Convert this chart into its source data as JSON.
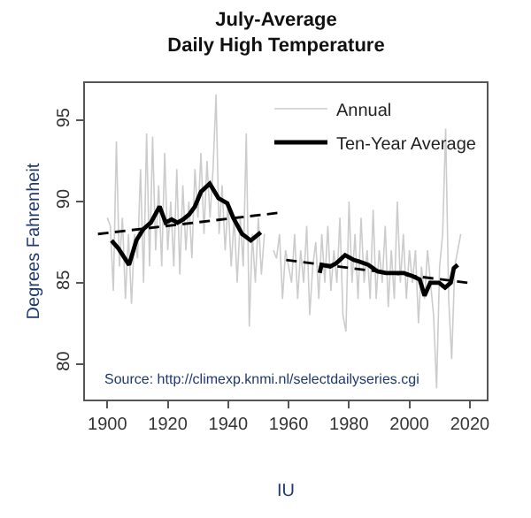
{
  "chart_data": {
    "type": "line",
    "title": "July-Average\nDaily High Temperature",
    "xlabel": "IU",
    "ylabel": "Degrees Fahrenheit",
    "xlim": [
      1892.6,
      2025.6
    ],
    "ylim": [
      77.8,
      97.3
    ],
    "xticks": [
      1900,
      1920,
      1940,
      1960,
      1980,
      2000,
      2020
    ],
    "yticks": [
      80,
      85,
      90,
      95
    ],
    "legend": "top right",
    "marker": "none",
    "annotations": [
      "Source: http://climexp.knmi.nl/selectdailyseries.cgi"
    ],
    "series": [
      {
        "name": "Annual",
        "color": "#cccccc",
        "x": [
          1900,
          1901,
          1902,
          1903,
          1904,
          1905,
          1906,
          1907,
          1908,
          1909,
          1910,
          1911,
          1912,
          1913,
          1914,
          1915,
          1916,
          1917,
          1918,
          1919,
          1920,
          1921,
          1922,
          1923,
          1924,
          1925,
          1926,
          1927,
          1928,
          1929,
          1930,
          1931,
          1932,
          1933,
          1934,
          1935,
          1936,
          1937,
          1938,
          1939,
          1940,
          1941,
          1942,
          1943,
          1944,
          1945,
          1946,
          1947,
          1948,
          1949,
          1950,
          1951,
          1952,
          1953,
          1955,
          1956,
          1957,
          1958,
          1959,
          1960,
          1961,
          1962,
          1963,
          1964,
          1965,
          1966,
          1967,
          1968,
          1969,
          1970,
          1971,
          1972,
          1973,
          1974,
          1975,
          1976,
          1977,
          1978,
          1979,
          1980,
          1981,
          1982,
          1983,
          1984,
          1985,
          1986,
          1987,
          1988,
          1989,
          1990,
          1991,
          1992,
          1993,
          1994,
          1995,
          1996,
          1997,
          1998,
          1999,
          2000,
          2001,
          2002,
          2003,
          2004,
          2005,
          2006,
          2007,
          2008,
          2009,
          2010,
          2011,
          2012,
          2013,
          2014,
          2015,
          2016,
          2017
        ],
        "values": [
          89,
          88.5,
          84.5,
          93.7,
          86,
          89,
          84,
          88,
          83.7,
          88,
          86.5,
          92,
          85,
          94.2,
          86,
          94,
          87,
          91,
          86,
          93,
          87,
          90,
          86,
          92,
          85.5,
          91,
          87,
          90,
          86.5,
          92,
          89,
          93,
          88,
          92.5,
          89,
          92,
          96.6,
          88,
          91,
          87,
          90,
          86,
          89,
          85,
          89,
          86,
          94.2,
          82.3,
          88,
          85,
          89,
          85.5,
          88,
          null,
          87,
          86.5,
          88,
          84,
          87,
          86,
          85,
          88,
          84,
          87,
          85,
          88.5,
          83,
          86,
          87.5,
          84,
          88,
          85,
          88.5,
          84.5,
          87,
          85,
          89,
          83,
          82,
          90,
          85,
          88,
          84,
          89,
          85,
          87,
          84,
          89.5,
          84,
          87,
          85,
          88.5,
          83.5,
          87,
          84,
          90,
          85,
          88,
          84,
          87,
          85,
          87,
          82.5,
          86,
          84,
          87,
          85,
          83,
          78.5,
          86,
          88,
          94.5,
          84,
          80.3,
          86,
          87,
          88
        ]
      },
      {
        "name": "Ten-Year Average",
        "color": "#000000",
        "x": [
          1901.4,
          1903.7,
          1907.2,
          1909.6,
          1911.9,
          1914.4,
          1917.3,
          1919.3,
          1921.3,
          1923.2,
          1925.1,
          1927.1,
          1929,
          1931,
          1933.9,
          1936.8,
          1939.7,
          1941.7,
          1944.6,
          1947.5,
          1950.8,
          1960,
          1970.3,
          1970.9,
          1973.8,
          1975.8,
          1978.7,
          1981.6,
          1983.5,
          1986.4,
          1989.4,
          1992.3,
          1995.2,
          1998.1,
          2001.1,
          2003.4,
          2005,
          2006.9,
          2009.8,
          2011.8,
          2013.7,
          2014.7,
          2016
        ],
        "values": [
          87.6,
          87.1,
          86.1,
          87.6,
          88.3,
          88.7,
          89.7,
          88.7,
          88.9,
          88.7,
          88.9,
          89.2,
          89.7,
          90.6,
          91.1,
          90.2,
          89.9,
          89.0,
          88.0,
          87.6,
          88.1,
          null,
          85.6,
          86.1,
          86.0,
          86.2,
          86.7,
          86.4,
          86.3,
          86.1,
          85.7,
          85.6,
          85.6,
          85.6,
          85.4,
          85.2,
          84.2,
          85.0,
          85.0,
          84.7,
          85.0,
          85.9,
          86.1
        ]
      },
      {
        "color": "#000000",
        "line_style": "dashed",
        "x": [
          1896.9,
          1956.3
        ],
        "values": [
          88.0,
          89.3
        ]
      },
      {
        "color": "#000000",
        "line_style": "dashed",
        "x": [
          1959.2,
          2019.2
        ],
        "values": [
          86.4,
          85.0
        ]
      }
    ]
  }
}
